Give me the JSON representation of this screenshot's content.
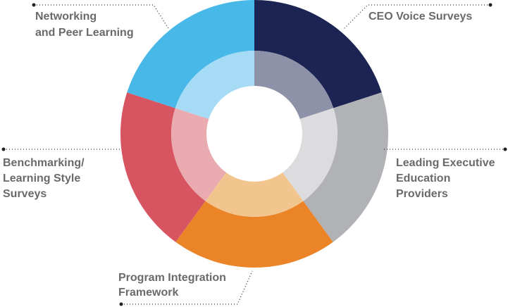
{
  "nodes": [
    {
      "label": [
        "CEO Voice Surveys"
      ],
      "color": "#1b2452",
      "inner_color": "#8e92a8"
    },
    {
      "label": [
        "Leading Executive",
        "Education",
        "Providers"
      ],
      "color": "#b1b2b6",
      "inner_color": "#dcdcde"
    },
    {
      "label": [
        "Program Integration",
        "Framework"
      ],
      "color": "#ea8427",
      "inner_color": "#f3c58e"
    },
    {
      "label": [
        "Benchmarking/",
        "Learning Style",
        "Surveys"
      ],
      "color": "#d75561",
      "inner_color": "#eaabb0"
    },
    {
      "label": [
        "Networking",
        "and Peer Learning"
      ],
      "color": "#48b8e8",
      "inner_color": "#a6dbf5"
    }
  ]
}
